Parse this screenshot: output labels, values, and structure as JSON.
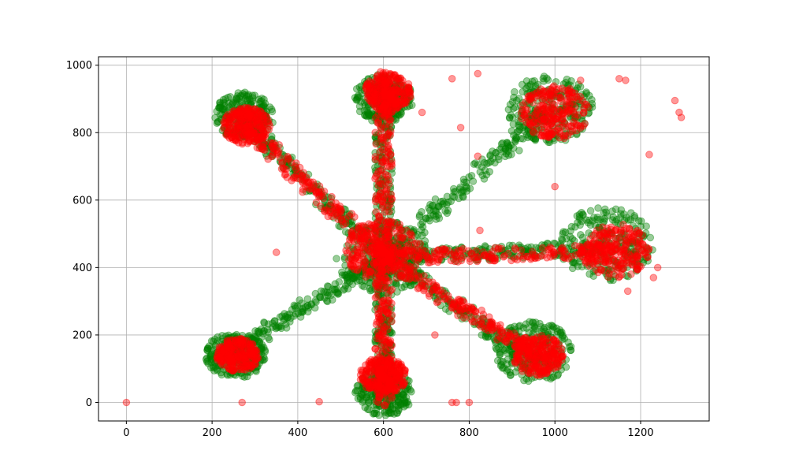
{
  "chart_data": {
    "type": "scatter",
    "title": "",
    "xlabel": "",
    "ylabel": "",
    "xlim": [
      -65,
      1360
    ],
    "ylim": [
      -55,
      1025
    ],
    "xticks": [
      0,
      200,
      400,
      600,
      800,
      1000,
      1200
    ],
    "yticks": [
      0,
      200,
      400,
      600,
      800,
      1000
    ],
    "grid": true,
    "legend": "none",
    "description_shape": "star-shaped cluster of overlapping points centered near (600, 430) with eight arms",
    "series": [
      {
        "color": "#008000",
        "alpha": 0.4,
        "clusters": [
          {
            "center": [
              600,
              430
            ],
            "radius": 110
          },
          {
            "center": [
              275,
              850
            ],
            "radius": 70
          },
          {
            "center": [
              255,
              140
            ],
            "radius": 70
          },
          {
            "center": [
              990,
              870
            ],
            "radius": 100
          },
          {
            "center": [
              1120,
              470
            ],
            "radius": 110
          },
          {
            "center": [
              950,
              150
            ],
            "radius": 90
          },
          {
            "center": [
              600,
              900
            ],
            "radius": 70
          },
          {
            "center": [
              600,
              30
            ],
            "radius": 70
          }
        ],
        "arms": [
          {
            "from": [
              600,
              430
            ],
            "to": [
              270,
              840
            ]
          },
          {
            "from": [
              600,
              430
            ],
            "to": [
              250,
              150
            ]
          },
          {
            "from": [
              600,
              430
            ],
            "to": [
              600,
              960
            ]
          },
          {
            "from": [
              600,
              430
            ],
            "to": [
              600,
              10
            ]
          },
          {
            "from": [
              600,
              430
            ],
            "to": [
              980,
              860
            ]
          },
          {
            "from": [
              600,
              430
            ],
            "to": [
              1120,
              460
            ]
          },
          {
            "from": [
              600,
              430
            ],
            "to": [
              960,
              120
            ]
          }
        ]
      },
      {
        "color": "#ff0000",
        "alpha": 0.4,
        "clusters": [
          {
            "center": [
              600,
              450
            ],
            "radius": 90
          },
          {
            "center": [
              280,
              820
            ],
            "radius": 55
          },
          {
            "center": [
              260,
              140
            ],
            "radius": 50
          },
          {
            "center": [
              1000,
              860
            ],
            "radius": 80
          },
          {
            "center": [
              1140,
              450
            ],
            "radius": 80
          },
          {
            "center": [
              960,
              140
            ],
            "radius": 60
          },
          {
            "center": [
              610,
              920
            ],
            "radius": 55
          },
          {
            "center": [
              600,
              80
            ],
            "radius": 55
          }
        ],
        "arms": [
          {
            "from": [
              600,
              430
            ],
            "to": [
              600,
              970
            ]
          },
          {
            "from": [
              600,
              430
            ],
            "to": [
              600,
              5
            ]
          },
          {
            "from": [
              600,
              430
            ],
            "to": [
              1140,
              450
            ]
          },
          {
            "from": [
              600,
              430
            ],
            "to": [
              280,
              820
            ]
          },
          {
            "from": [
              600,
              430
            ],
            "to": [
              960,
              140
            ]
          }
        ],
        "outliers": [
          [
            0,
            0
          ],
          [
            270,
            0
          ],
          [
            450,
            2
          ],
          [
            350,
            445
          ],
          [
            1280,
            895
          ],
          [
            1290,
            860
          ],
          [
            1295,
            845
          ],
          [
            1220,
            735
          ],
          [
            1165,
            955
          ],
          [
            1150,
            960
          ],
          [
            1060,
            955
          ],
          [
            820,
            975
          ],
          [
            760,
            960
          ],
          [
            780,
            815
          ],
          [
            820,
            730
          ],
          [
            1000,
            640
          ],
          [
            1240,
            400
          ],
          [
            1230,
            370
          ],
          [
            1170,
            330
          ],
          [
            800,
            0
          ],
          [
            760,
            0
          ],
          [
            770,
            0
          ],
          [
            780,
            300
          ],
          [
            720,
            200
          ],
          [
            825,
            510
          ],
          [
            690,
            860
          ]
        ]
      }
    ]
  }
}
